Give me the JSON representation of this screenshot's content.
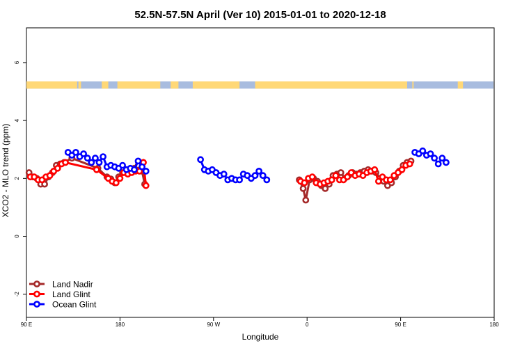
{
  "chart_data": {
    "type": "line",
    "title": "52.5N-57.5N April (Ver 10)   2015-01-01 to 2020-12-18",
    "xlabel": "Longitude",
    "ylabel": "XCO2 - MLO trend (ppm)",
    "xlim": [
      -180,
      180
    ],
    "ylim": [
      -2.8,
      7.2
    ],
    "x_ticks": [
      {
        "value": -180,
        "label": "90 E"
      },
      {
        "value": -108,
        "label": "180"
      },
      {
        "value": -36,
        "label": "90 W"
      },
      {
        "value": 36,
        "label": "0"
      },
      {
        "value": 108,
        "label": "90 E"
      },
      {
        "value": 180,
        "label": "180"
      }
    ],
    "y_ticks": [
      {
        "value": -2,
        "label": "-2"
      },
      {
        "value": 0,
        "label": "0"
      },
      {
        "value": 2,
        "label": "2"
      },
      {
        "value": 4,
        "label": "4"
      },
      {
        "value": 6,
        "label": "6"
      }
    ],
    "land_ocean_band": {
      "y_range": [
        5.1,
        5.35
      ],
      "land_color": "#ffd877",
      "ocean_color": "#a8bcdf",
      "land_intervals": [
        [
          -180,
          -141
        ],
        [
          -140,
          -138
        ],
        [
          -122,
          -117
        ],
        [
          -110,
          -77
        ],
        [
          -69,
          -63
        ],
        [
          -52,
          -16
        ],
        [
          -4,
          113
        ],
        [
          117,
          118
        ],
        [
          152,
          156
        ]
      ]
    },
    "legend_position": "bottom-left",
    "series": [
      {
        "name": "Land Nadir",
        "color": "#a52a2a",
        "segments": [
          [
            [
              -178,
              2.2
            ],
            [
              -175,
              2.05
            ],
            [
              -172,
              2.0
            ],
            [
              -169,
              1.8
            ],
            [
              -166,
              1.8
            ],
            [
              -163,
              2.05
            ],
            [
              -160,
              2.2
            ],
            [
              -157,
              2.45
            ],
            [
              -154,
              2.5
            ],
            [
              -151,
              2.55
            ],
            [
              -145,
              2.7
            ],
            [
              -125,
              2.35
            ],
            [
              -118,
              2.05
            ],
            [
              -115,
              1.98
            ],
            [
              -112,
              1.85
            ],
            [
              -109,
              2.05
            ],
            [
              -106,
              2.2
            ],
            [
              -103,
              2.25
            ],
            [
              -100,
              2.3
            ],
            [
              -97,
              2.35
            ],
            [
              -94,
              2.45
            ],
            [
              -91,
              2.25
            ],
            [
              -89,
              1.8
            ]
          ],
          [
            [
              30,
              1.95
            ],
            [
              33,
              1.65
            ],
            [
              35,
              1.25
            ],
            [
              38,
              1.95
            ],
            [
              41,
              2.0
            ],
            [
              44,
              1.9
            ],
            [
              47,
              1.75
            ],
            [
              50,
              1.65
            ],
            [
              53,
              1.8
            ],
            [
              56,
              2.1
            ],
            [
              59,
              2.15
            ],
            [
              62,
              2.2
            ],
            [
              65,
              2.0
            ],
            [
              68,
              2.1
            ],
            [
              71,
              2.2
            ],
            [
              74,
              2.15
            ],
            [
              77,
              2.2
            ],
            [
              80,
              2.25
            ],
            [
              83,
              2.3
            ],
            [
              86,
              2.25
            ],
            [
              89,
              2.2
            ],
            [
              92,
              2.0
            ],
            [
              95,
              1.9
            ],
            [
              98,
              1.75
            ],
            [
              101,
              1.85
            ],
            [
              104,
              2.05
            ],
            [
              107,
              2.25
            ],
            [
              110,
              2.45
            ],
            [
              113,
              2.55
            ],
            [
              116,
              2.6
            ]
          ]
        ]
      },
      {
        "name": "Land Glint",
        "color": "#ff0000",
        "segments": [
          [
            [
              -177,
              2.05
            ],
            [
              -174,
              2.05
            ],
            [
              -171,
              1.95
            ],
            [
              -168,
              1.95
            ],
            [
              -165,
              2.05
            ],
            [
              -162,
              2.1
            ],
            [
              -159,
              2.25
            ],
            [
              -156,
              2.35
            ],
            [
              -153,
              2.5
            ],
            [
              -150,
              2.55
            ],
            [
              -126,
              2.3
            ],
            [
              -117,
              2.0
            ],
            [
              -114,
              1.9
            ],
            [
              -111,
              1.85
            ],
            [
              -108,
              2.0
            ],
            [
              -105,
              2.2
            ],
            [
              -102,
              2.15
            ],
            [
              -99,
              2.2
            ],
            [
              -96,
              2.25
            ],
            [
              -93,
              2.25
            ],
            [
              -90,
              2.55
            ],
            [
              -88,
              1.75
            ]
          ],
          [
            [
              31,
              1.9
            ],
            [
              34,
              1.85
            ],
            [
              37,
              2.0
            ],
            [
              40,
              2.05
            ],
            [
              43,
              1.85
            ],
            [
              46,
              1.8
            ],
            [
              49,
              1.85
            ],
            [
              52,
              1.9
            ],
            [
              55,
              1.95
            ],
            [
              58,
              2.1
            ],
            [
              61,
              1.95
            ],
            [
              64,
              1.95
            ],
            [
              67,
              2.05
            ],
            [
              70,
              2.2
            ],
            [
              73,
              2.1
            ],
            [
              76,
              2.15
            ],
            [
              79,
              2.1
            ],
            [
              82,
              2.2
            ],
            [
              85,
              2.25
            ],
            [
              88,
              2.3
            ],
            [
              91,
              1.9
            ],
            [
              94,
              2.05
            ],
            [
              97,
              1.95
            ],
            [
              100,
              1.95
            ],
            [
              103,
              2.1
            ],
            [
              106,
              2.2
            ],
            [
              109,
              2.3
            ],
            [
              112,
              2.45
            ],
            [
              115,
              2.5
            ]
          ]
        ]
      },
      {
        "name": "Ocean Glint",
        "color": "#0000ff",
        "segments": [
          [
            [
              -148,
              2.9
            ],
            [
              -145,
              2.8
            ],
            [
              -142,
              2.9
            ],
            [
              -139,
              2.75
            ],
            [
              -136,
              2.85
            ],
            [
              -133,
              2.7
            ],
            [
              -130,
              2.55
            ],
            [
              -127,
              2.7
            ],
            [
              -124,
              2.55
            ],
            [
              -121,
              2.75
            ],
            [
              -118,
              2.4
            ],
            [
              -115,
              2.45
            ],
            [
              -112,
              2.4
            ],
            [
              -109,
              2.35
            ],
            [
              -106,
              2.45
            ],
            [
              -103,
              2.3
            ],
            [
              -100,
              2.35
            ],
            [
              -97,
              2.3
            ],
            [
              -94,
              2.6
            ],
            [
              -91,
              2.4
            ],
            [
              -88,
              2.25
            ]
          ],
          [
            [
              -46,
              2.65
            ],
            [
              -43,
              2.3
            ],
            [
              -40,
              2.25
            ],
            [
              -37,
              2.3
            ],
            [
              -34,
              2.2
            ],
            [
              -31,
              2.1
            ],
            [
              -28,
              2.15
            ],
            [
              -25,
              1.95
            ],
            [
              -22,
              2.0
            ],
            [
              -19,
              1.95
            ],
            [
              -16,
              1.95
            ],
            [
              -13,
              2.15
            ],
            [
              -10,
              2.1
            ],
            [
              -7,
              2.0
            ],
            [
              -4,
              2.1
            ],
            [
              -1,
              2.25
            ],
            [
              2,
              2.1
            ],
            [
              5,
              1.95
            ]
          ],
          [
            [
              119,
              2.9
            ],
            [
              122,
              2.85
            ],
            [
              125,
              2.95
            ],
            [
              128,
              2.8
            ],
            [
              131,
              2.85
            ],
            [
              134,
              2.7
            ],
            [
              137,
              2.5
            ],
            [
              140,
              2.7
            ],
            [
              143,
              2.55
            ]
          ]
        ]
      }
    ]
  }
}
